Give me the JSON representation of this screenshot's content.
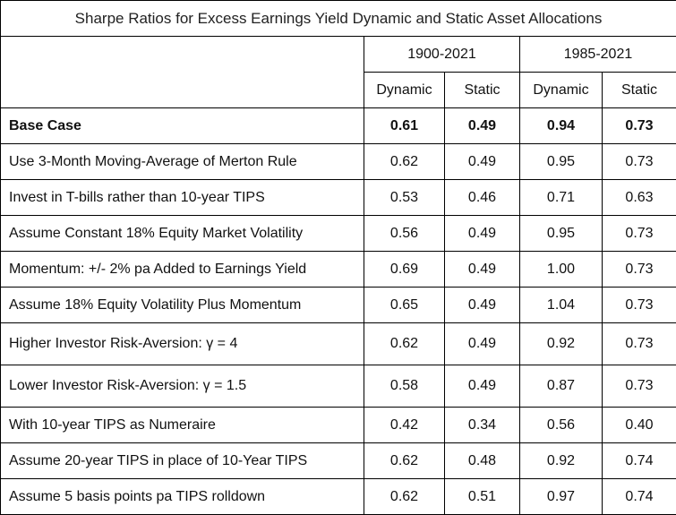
{
  "table": {
    "title": "Sharpe Ratios for Excess Earnings Yield Dynamic and Static Asset Allocations",
    "periods": [
      "1900-2021",
      "1985-2021"
    ],
    "subheaders": [
      "Dynamic",
      "Static",
      "Dynamic",
      "Static"
    ],
    "rows": [
      {
        "label": "Base Case",
        "values": [
          "0.61",
          "0.49",
          "0.94",
          "0.73"
        ]
      },
      {
        "label": "Use 3-Month Moving-Average of Merton Rule",
        "values": [
          "0.62",
          "0.49",
          "0.95",
          "0.73"
        ]
      },
      {
        "label": "Invest in T-bills rather than 10-year TIPS",
        "values": [
          "0.53",
          "0.46",
          "0.71",
          "0.63"
        ]
      },
      {
        "label": "Assume Constant 18% Equity Market Volatility",
        "values": [
          "0.56",
          "0.49",
          "0.95",
          "0.73"
        ]
      },
      {
        "label": "Momentum: +/- 2% pa Added to Earnings Yield",
        "values": [
          "0.69",
          "0.49",
          "1.00",
          "0.73"
        ]
      },
      {
        "label": "Assume 18% Equity Volatility Plus Momentum",
        "values": [
          "0.65",
          "0.49",
          "1.04",
          "0.73"
        ]
      },
      {
        "label": "Higher Investor Risk-Aversion: γ = 4",
        "values": [
          "0.62",
          "0.49",
          "0.92",
          "0.73"
        ]
      },
      {
        "label": "Lower Investor Risk-Aversion: γ = 1.5",
        "values": [
          "0.58",
          "0.49",
          "0.87",
          "0.73"
        ]
      },
      {
        "label": "With 10-year TIPS as Numeraire",
        "values": [
          "0.42",
          "0.34",
          "0.56",
          "0.40"
        ]
      },
      {
        "label": "Assume 20-year TIPS in place of 10-Year TIPS",
        "values": [
          "0.62",
          "0.48",
          "0.92",
          "0.74"
        ]
      },
      {
        "label": "Assume 5 basis points pa TIPS rolldown",
        "values": [
          "0.62",
          "0.51",
          "0.97",
          "0.74"
        ]
      }
    ]
  }
}
